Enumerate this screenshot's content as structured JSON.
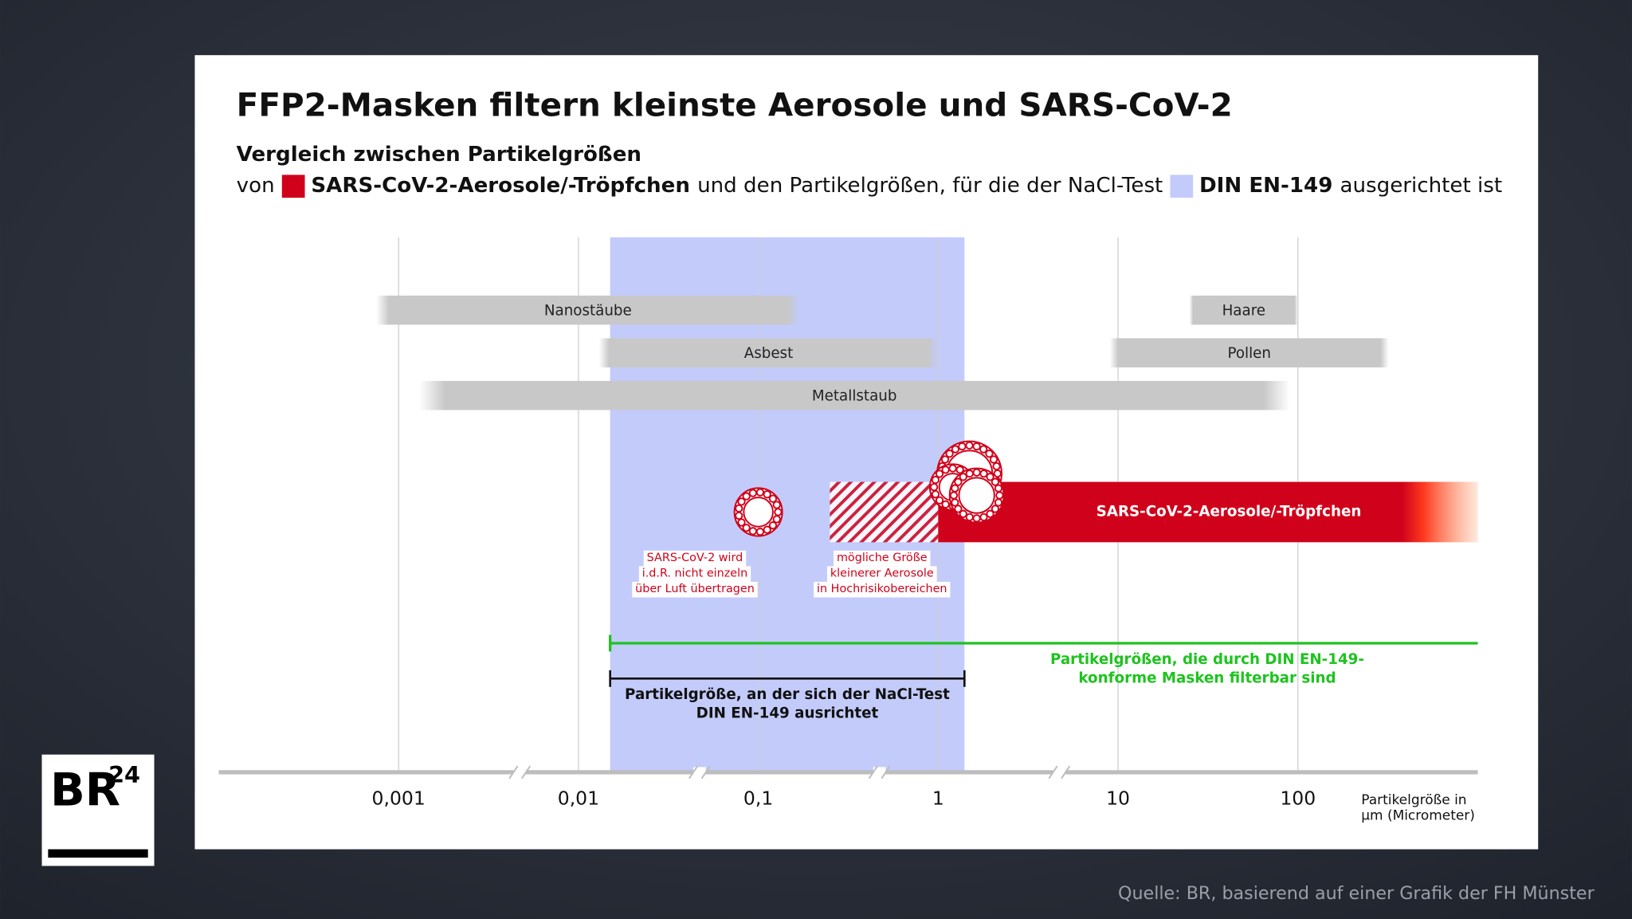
{
  "chart_data": {
    "type": "range",
    "title": "FFP2-Masken filtern kleinste Aerosole und SARS-CoV-2",
    "subtitle": "Vergleich zwischen Partikelgrößen",
    "legend_text": [
      "von",
      "und den Partikelgrößen, für die der NaCl-Test",
      "ausgerichtet ist"
    ],
    "log_x": true,
    "grid": true,
    "xlim": [
      0.0001,
      1000
    ],
    "xticks": [
      {
        "value": 0.001,
        "label": "0,001"
      },
      {
        "value": 0.01,
        "label": "0,01"
      },
      {
        "value": 0.1,
        "label": "0,1"
      },
      1,
      10,
      100
    ],
    "xlabel": [
      "Partikelgröße in",
      "µm (Micrometer)"
    ],
    "band": {
      "name": "DIN EN-149",
      "color": "#c3cbfb",
      "range": [
        0.015,
        1.4
      ]
    },
    "sars": {
      "name": "SARS-CoV-2-Aerosole/-Tröpfchen",
      "color": "#d0021b",
      "range": [
        1,
        1000
      ]
    },
    "rows": [
      [
        {
          "name": "Nanostäube",
          "range": [
            0.00075,
            0.17
          ]
        },
        {
          "name": "Haare",
          "range": [
            25,
            100
          ]
        }
      ],
      [
        {
          "name": "Asbest",
          "range": [
            0.013,
            1
          ]
        },
        {
          "name": "Pollen",
          "range": [
            9,
            320
          ]
        }
      ],
      [
        {
          "name": "Metallstaub",
          "range": [
            0.0013,
            90
          ]
        }
      ]
    ],
    "bar_color": "#c8c8c8",
    "virus": {
      "x": 0.1,
      "label": [
        "SARS-CoV-2 wird",
        "i.d.R. nicht einzeln",
        "über Luft übertragen"
      ]
    },
    "hatched": {
      "range": [
        0.25,
        1
      ],
      "label": [
        "mögliche Größe",
        "kleinerer Aerosole",
        "in Hochrisikobereichen"
      ]
    },
    "filterable": {
      "range": [
        0.015,
        1000
      ],
      "color": "#1ec31e",
      "label": [
        "Partikelgrößen, die durch DIN EN-149-",
        "konforme Masken filterbar sind"
      ]
    },
    "nacl": {
      "range": [
        0.015,
        1.4
      ],
      "label": [
        "Partikelgröße, an der sich der NaCl-Test",
        "DIN EN-149 ausrichtet"
      ]
    }
  },
  "source": "Quelle: BR, basierend auf einer Grafik der FH Münster",
  "logo": {
    "text": "BR",
    "sup": "24"
  }
}
